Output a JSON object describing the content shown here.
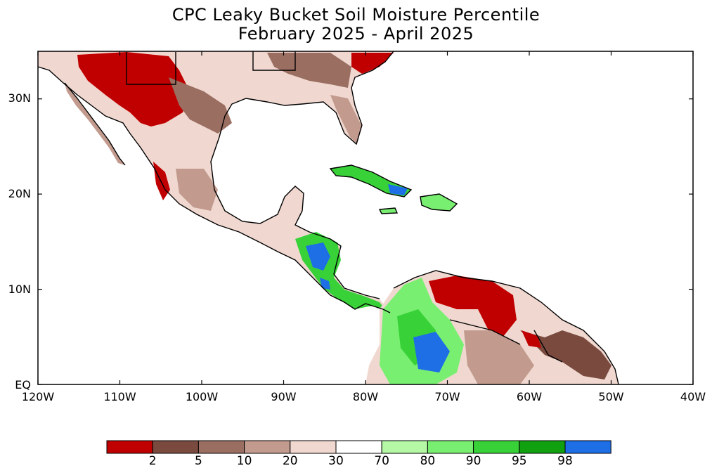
{
  "title": {
    "line1": "CPC Leaky Bucket Soil Moisture Percentile",
    "line2": "February 2025 - April 2025"
  },
  "axes": {
    "lon_ticks": [
      "120W",
      "110W",
      "100W",
      "90W",
      "80W",
      "70W",
      "60W",
      "50W",
      "40W"
    ],
    "lat_ticks": [
      "EQ",
      "10N",
      "20N",
      "30N"
    ]
  },
  "legend": {
    "colors": [
      "#c00000",
      "#7a4a3f",
      "#9b6e62",
      "#c29b8e",
      "#f0d8d0",
      "#ffffff",
      "#b4f7a4",
      "#78ef70",
      "#38d238",
      "#10a010",
      "#1e6ee6"
    ],
    "labels": [
      "2",
      "5",
      "10",
      "20",
      "30",
      "70",
      "80",
      "90",
      "95",
      "98"
    ]
  },
  "palette": {
    "red": "#c00000",
    "dark_brown": "#7a4a3f",
    "brown": "#9b6e62",
    "tan": "#c29b8e",
    "pale": "#f0d8d0",
    "light_green": "#b4f7a4",
    "green": "#78ef70",
    "mid_green": "#38d238",
    "dark_green": "#10a010",
    "blue": "#1e6ee6"
  }
}
